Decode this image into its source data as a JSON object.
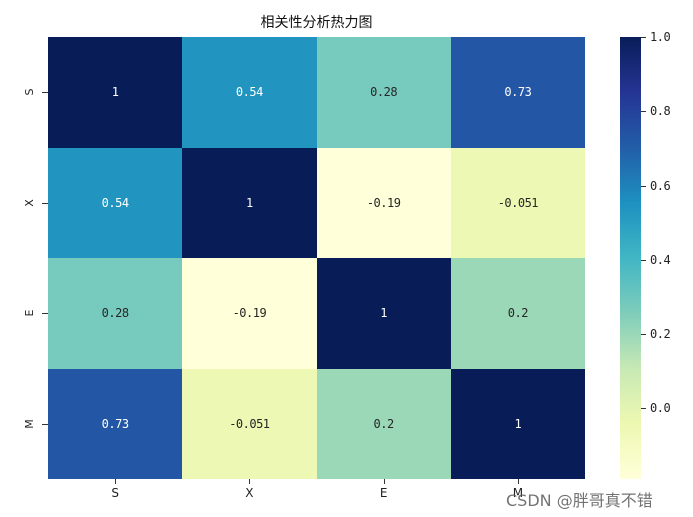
{
  "chart_data": {
    "type": "heatmap",
    "title": "相关性分析热力图",
    "xlabel": "",
    "ylabel": "",
    "x_labels": [
      "S",
      "X",
      "E",
      "M"
    ],
    "y_labels": [
      "S",
      "X",
      "E",
      "M"
    ],
    "values": [
      [
        1,
        0.54,
        0.28,
        0.73
      ],
      [
        0.54,
        1,
        -0.19,
        -0.051
      ],
      [
        0.28,
        -0.19,
        1,
        0.2
      ],
      [
        0.73,
        -0.051,
        0.2,
        1
      ]
    ],
    "annotations": [
      [
        "1",
        "0.54",
        "0.28",
        "0.73"
      ],
      [
        "0.54",
        "1",
        "-0.19",
        "-0.051"
      ],
      [
        "0.28",
        "-0.19",
        "1",
        "0.2"
      ],
      [
        "0.73",
        "-0.051",
        "0.2",
        "1"
      ]
    ],
    "colormap": "YlGnBu",
    "colorbar": {
      "range": [
        -0.19,
        1.0
      ],
      "ticks": [
        1.0,
        0.8,
        0.6,
        0.4,
        0.2,
        0.0
      ],
      "tick_labels": [
        "1.0",
        "0.8",
        "0.6",
        "0.4",
        "0.2",
        "0.0"
      ]
    },
    "cell_colors": [
      [
        "#081d58",
        "#2195c0",
        "#77cbbe",
        "#2356a4"
      ],
      [
        "#2195c0",
        "#081d58",
        "#ffffd9",
        "#edf8b4"
      ],
      [
        "#77cbbe",
        "#ffffd9",
        "#081d58",
        "#9bd8b8"
      ],
      [
        "#2356a4",
        "#edf8b4",
        "#9bd8b8",
        "#081d58"
      ]
    ],
    "text_colors": [
      [
        "#ffffff",
        "#ffffff",
        "#262626",
        "#ffffff"
      ],
      [
        "#ffffff",
        "#ffffff",
        "#262626",
        "#262626"
      ],
      [
        "#262626",
        "#262626",
        "#ffffff",
        "#262626"
      ],
      [
        "#ffffff",
        "#262626",
        "#262626",
        "#ffffff"
      ]
    ]
  },
  "watermark": "CSDN @胖哥真不错"
}
